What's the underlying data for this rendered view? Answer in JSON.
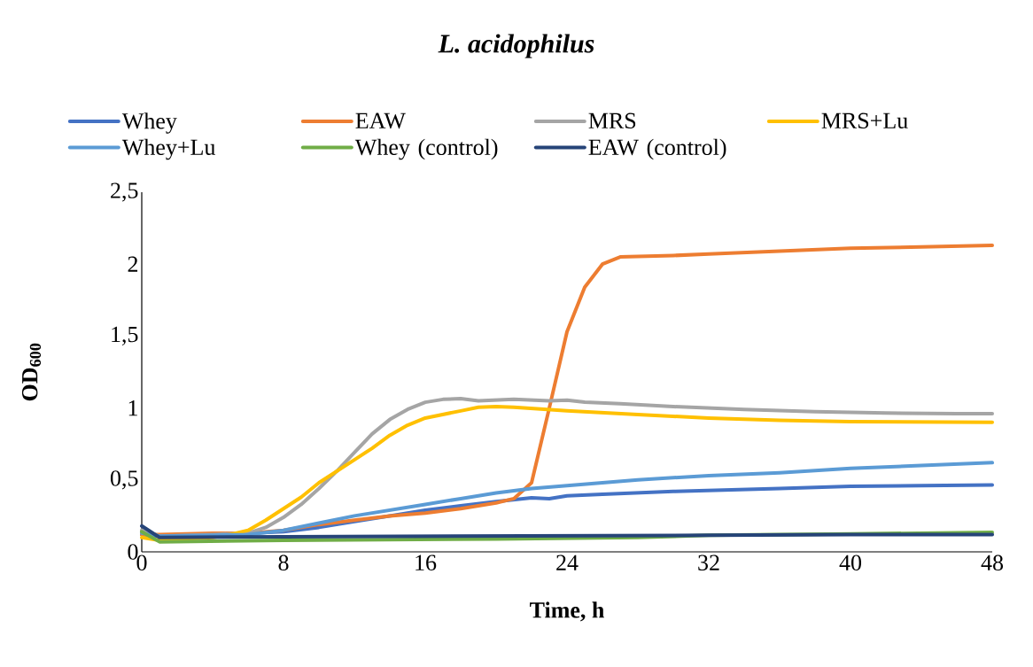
{
  "chart_data": {
    "type": "line",
    "title": "L. acidophilus",
    "xlabel": "Time, h",
    "ylabel": "OD$_{600}$",
    "xlim": [
      0,
      48
    ],
    "xticks": [
      0,
      8,
      16,
      24,
      32,
      40,
      48
    ],
    "ylim": [
      0,
      2.5
    ],
    "yticks": [
      0,
      {
        "value": 0.5,
        "label": "0,5"
      },
      1,
      {
        "value": 1.5,
        "label": "1,5"
      },
      2,
      {
        "value": 2.5,
        "label": "2,5"
      }
    ],
    "legend": "top",
    "marker": "none",
    "line_style": "solid",
    "series": [
      {
        "name": "Whey",
        "color": "#4472c4",
        "x": [
          0,
          1,
          4,
          6,
          8,
          10,
          12,
          14,
          16,
          18,
          20,
          22,
          23,
          24,
          26,
          30,
          36,
          40,
          44,
          48
        ],
        "values": [
          0.12,
          0.11,
          0.12,
          0.13,
          0.14,
          0.17,
          0.21,
          0.25,
          0.29,
          0.32,
          0.35,
          0.375,
          0.37,
          0.39,
          0.4,
          0.42,
          0.44,
          0.455,
          0.46,
          0.465
        ]
      },
      {
        "name": "EAW",
        "color": "#ed7d31",
        "x": [
          0,
          1,
          4,
          6,
          8,
          10,
          12,
          14,
          16,
          18,
          20,
          21,
          22,
          23,
          24,
          25,
          26,
          27,
          30,
          32,
          36,
          40,
          44,
          48
        ],
        "values": [
          0.12,
          0.12,
          0.13,
          0.13,
          0.15,
          0.19,
          0.22,
          0.25,
          0.27,
          0.3,
          0.34,
          0.37,
          0.48,
          1.0,
          1.53,
          1.84,
          2.0,
          2.05,
          2.06,
          2.07,
          2.09,
          2.11,
          2.12,
          2.13
        ]
      },
      {
        "name": "MRS",
        "color": "#a5a5a5",
        "x": [
          0,
          1,
          4,
          6,
          7,
          8,
          9,
          10,
          11,
          12,
          13,
          14,
          15,
          16,
          17,
          18,
          19,
          21,
          23,
          24,
          25,
          27,
          30,
          34,
          38,
          42,
          46,
          48
        ],
        "values": [
          0.15,
          0.11,
          0.12,
          0.13,
          0.17,
          0.24,
          0.33,
          0.44,
          0.56,
          0.69,
          0.82,
          0.92,
          0.99,
          1.04,
          1.06,
          1.065,
          1.05,
          1.06,
          1.05,
          1.055,
          1.04,
          1.03,
          1.01,
          0.99,
          0.975,
          0.965,
          0.96,
          0.96
        ]
      },
      {
        "name": "MRS+Lu",
        "color": "#ffc000",
        "x": [
          0,
          1,
          4,
          5,
          6,
          7,
          8,
          9,
          10,
          12,
          13,
          14,
          15,
          16,
          18,
          19,
          20,
          21,
          24,
          28,
          32,
          36,
          40,
          48
        ],
        "values": [
          0.1,
          0.08,
          0.1,
          0.12,
          0.15,
          0.22,
          0.3,
          0.38,
          0.48,
          0.64,
          0.72,
          0.81,
          0.88,
          0.93,
          0.98,
          1.005,
          1.01,
          1.005,
          0.98,
          0.955,
          0.93,
          0.915,
          0.905,
          0.9
        ]
      },
      {
        "name": "Whey+Lu",
        "color": "#5b9bd5",
        "x": [
          0,
          1,
          6,
          8,
          10,
          12,
          14,
          16,
          18,
          20,
          22,
          24,
          26,
          28,
          32,
          36,
          40,
          44,
          48
        ],
        "values": [
          0.13,
          0.11,
          0.12,
          0.15,
          0.2,
          0.25,
          0.29,
          0.33,
          0.37,
          0.41,
          0.44,
          0.46,
          0.48,
          0.5,
          0.53,
          0.55,
          0.58,
          0.6,
          0.62
        ]
      },
      {
        "name": "Whey (control)",
        "color": "#70ad47",
        "x": [
          0,
          1,
          8,
          20,
          28,
          32,
          40,
          48
        ],
        "values": [
          0.14,
          0.07,
          0.08,
          0.09,
          0.1,
          0.115,
          0.125,
          0.135
        ]
      },
      {
        "name": "EAW (control)",
        "color": "#264478",
        "x": [
          0,
          1,
          8,
          20,
          32,
          40,
          48
        ],
        "values": [
          0.18,
          0.1,
          0.105,
          0.11,
          0.115,
          0.12,
          0.12
        ]
      }
    ]
  }
}
